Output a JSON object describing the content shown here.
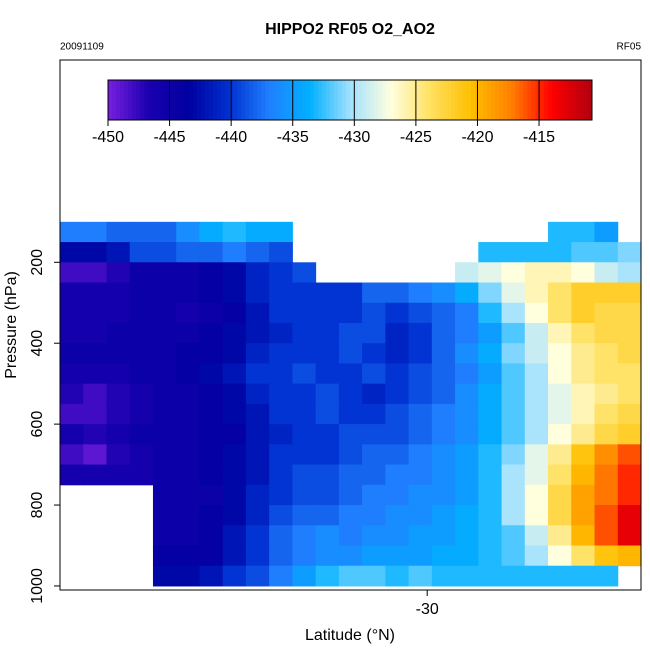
{
  "chart_data": {
    "type": "heatmap",
    "title": "HIPPO2 RF05 O2_AO2",
    "annotations": [
      "20091109",
      "RF05"
    ],
    "x_label": "Latitude (°N)",
    "y_label": "Pressure (hPa)",
    "xlim": [
      -45.8,
      -20.8
    ],
    "xticks": [
      -30
    ],
    "ylim": [
      1010,
      -300
    ],
    "yticks": [
      200,
      400,
      600,
      800,
      1000
    ],
    "zlim": [
      -450,
      -410.7
    ],
    "zticks": [
      -450,
      -445,
      -440,
      -435,
      -430,
      -425,
      -420,
      -415
    ],
    "colorscale": [
      "#7a1fe0",
      "#1a00b0",
      "#0000a0",
      "#0030d0",
      "#2080ff",
      "#00b0ff",
      "#a0e0ff",
      "#ffffe0",
      "#ffe060",
      "#ffc000",
      "#ff8000",
      "#ff0000",
      "#b00010"
    ],
    "x": [
      -45.3,
      -44.3,
      -43.3,
      -42.3,
      -41.3,
      -40.3,
      -39.3,
      -38.3,
      -37.3,
      -36.3,
      -35.3,
      -34.3,
      -33.3,
      -32.3,
      -31.3,
      -30.3,
      -29.3,
      -28.3,
      -27.3,
      -26.3,
      -25.3,
      -24.3,
      -23.3,
      -22.3,
      -21.3
    ],
    "y": [
      125,
      175,
      225,
      275,
      325,
      375,
      425,
      475,
      525,
      575,
      625,
      675,
      725,
      775,
      825,
      875,
      925,
      975
    ],
    "z": [
      [
        -437,
        -437,
        -438,
        -438,
        -438,
        -436,
        -434,
        -433,
        -434,
        -434,
        null,
        null,
        null,
        null,
        null,
        null,
        null,
        null,
        null,
        null,
        null,
        -433,
        -433,
        -435,
        null
      ],
      [
        -443,
        -443,
        -442,
        -439,
        -439,
        -438,
        -438,
        -437,
        -438,
        -439,
        null,
        null,
        null,
        null,
        null,
        null,
        null,
        null,
        -433,
        -433,
        -433,
        -433,
        -432,
        -432,
        -431
      ],
      [
        -448,
        -448,
        -447,
        -445,
        -445,
        -445,
        -444,
        -443,
        -441,
        -440,
        -439,
        null,
        null,
        null,
        null,
        null,
        null,
        -429,
        -428,
        -427,
        -426,
        -426,
        -427,
        -429,
        -430
      ],
      [
        -446,
        -446,
        -446,
        -445,
        -445,
        -445,
        -444,
        -443,
        -441,
        -440,
        -440,
        -440,
        -440,
        -438,
        -438,
        -437,
        -436,
        -434,
        -431,
        -428,
        -426,
        -424,
        -422,
        -422,
        -422
      ],
      [
        -446,
        -446,
        -446,
        -445,
        -445,
        -446,
        -445,
        -444,
        -442,
        -440,
        -440,
        -440,
        -440,
        -439,
        -440,
        -439,
        -438,
        -437,
        -433,
        -430,
        -427,
        -424,
        -422,
        -423,
        -423
      ],
      [
        -446,
        -446,
        -445,
        -445,
        -445,
        -445,
        -444,
        -443,
        -442,
        -441,
        -440,
        -440,
        -439,
        -439,
        -441,
        -440,
        -438,
        -437,
        -435,
        -432,
        -429,
        -426,
        -424,
        -423,
        -423
      ],
      [
        -445,
        -445,
        -445,
        -445,
        -445,
        -444,
        -444,
        -443,
        -441,
        -440,
        -440,
        -440,
        -439,
        -440,
        -441,
        -440,
        -438,
        -436,
        -434,
        -431,
        -429,
        -427,
        -425,
        -424,
        -423
      ],
      [
        -446,
        -446,
        -446,
        -445,
        -445,
        -444,
        -443,
        -442,
        -440,
        -440,
        -439,
        -440,
        -440,
        -439,
        -440,
        -439,
        -438,
        -437,
        -435,
        -432,
        -430,
        -427,
        -425,
        -424,
        -424
      ],
      [
        -447,
        -448,
        -447,
        -446,
        -445,
        -445,
        -444,
        -443,
        -441,
        -440,
        -440,
        -439,
        -440,
        -441,
        -440,
        -439,
        -438,
        -436,
        -434,
        -432,
        -430,
        -428,
        -426,
        -425,
        -424
      ],
      [
        -448,
        -448,
        -447,
        -446,
        -445,
        -445,
        -444,
        -443,
        -442,
        -440,
        -440,
        -439,
        -440,
        -440,
        -439,
        -438,
        -437,
        -436,
        -434,
        -432,
        -430,
        -428,
        -426,
        -424,
        -423
      ],
      [
        -446,
        -447,
        -446,
        -445,
        -445,
        -445,
        -444,
        -444,
        -442,
        -441,
        -440,
        -440,
        -439,
        -439,
        -439,
        -438,
        -437,
        -436,
        -434,
        -432,
        -430,
        -427,
        -425,
        -423,
        -422
      ],
      [
        -448,
        -449,
        -447,
        -446,
        -445,
        -445,
        -444,
        -443,
        -442,
        -440,
        -440,
        -440,
        -439,
        -438,
        -438,
        -437,
        -436,
        -435,
        -433,
        -431,
        -428,
        -425,
        -421,
        -418,
        -416
      ],
      [
        -446,
        -446,
        -446,
        -446,
        -445,
        -445,
        -444,
        -443,
        -442,
        -440,
        -439,
        -439,
        -438,
        -438,
        -437,
        -437,
        -436,
        -435,
        -433,
        -430,
        -428,
        -424,
        -420,
        -417,
        -415
      ],
      [
        null,
        null,
        null,
        null,
        -445,
        -445,
        -445,
        -443,
        -441,
        -440,
        -439,
        -439,
        -438,
        -437,
        -437,
        -436,
        -436,
        -435,
        -433,
        -430,
        -427,
        -423,
        -419,
        -417,
        -415
      ],
      [
        null,
        null,
        null,
        null,
        -445,
        -445,
        -444,
        -443,
        -441,
        -439,
        -438,
        -438,
        -437,
        -437,
        -436,
        -436,
        -435,
        -434,
        -433,
        -430,
        -427,
        -423,
        -419,
        -416,
        -413
      ],
      [
        null,
        null,
        null,
        null,
        -445,
        -445,
        -444,
        -442,
        -440,
        -438,
        -437,
        -436,
        -437,
        -436,
        -436,
        -435,
        -435,
        -434,
        -433,
        -432,
        -429,
        -425,
        -420,
        -416,
        -413
      ],
      [
        null,
        null,
        null,
        null,
        -444,
        -444,
        -444,
        -442,
        -440,
        -438,
        -437,
        -436,
        -436,
        -435,
        -435,
        -435,
        -434,
        -434,
        -433,
        -432,
        -430,
        -427,
        -424,
        -421,
        -420
      ],
      [
        null,
        null,
        null,
        null,
        -443,
        -443,
        -442,
        -440,
        -439,
        -437,
        -435,
        -433,
        -432,
        -432,
        -433,
        -432,
        -433,
        -433,
        -433,
        -433,
        -433,
        -433,
        -433,
        -433,
        null
      ]
    ]
  }
}
